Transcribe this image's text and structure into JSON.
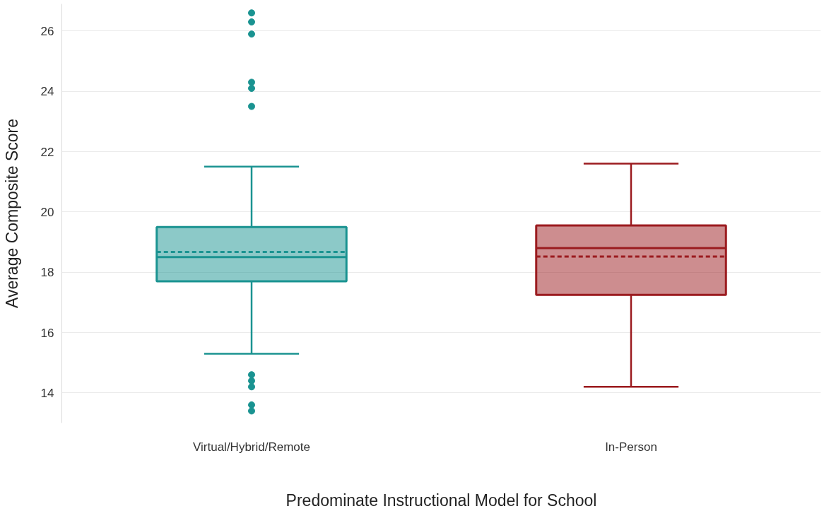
{
  "chart_data": {
    "type": "box",
    "xlabel": "Predominate Instructional Model for School",
    "ylabel": "Average Composite Score",
    "categories": [
      "Virtual/Hybrid/Remote",
      "In-Person"
    ],
    "colors": [
      "#1a9391",
      "#9b1b1f"
    ],
    "boxes": [
      {
        "low": 15.3,
        "q1": 17.7,
        "median": 18.5,
        "q3": 19.5,
        "high": 21.5,
        "mean": 18.67,
        "outliers": [
          26.6,
          26.3,
          25.9,
          24.3,
          24.1,
          23.5,
          14.6,
          14.4,
          14.2,
          13.6,
          13.4
        ]
      },
      {
        "low": 14.2,
        "q1": 17.25,
        "median": 18.8,
        "q3": 19.55,
        "high": 21.6,
        "mean": 18.52
      }
    ],
    "ylim": [
      13.0,
      26.9
    ],
    "yticks": [
      14,
      16,
      18,
      20,
      22,
      24,
      26
    ],
    "grid": "y"
  }
}
